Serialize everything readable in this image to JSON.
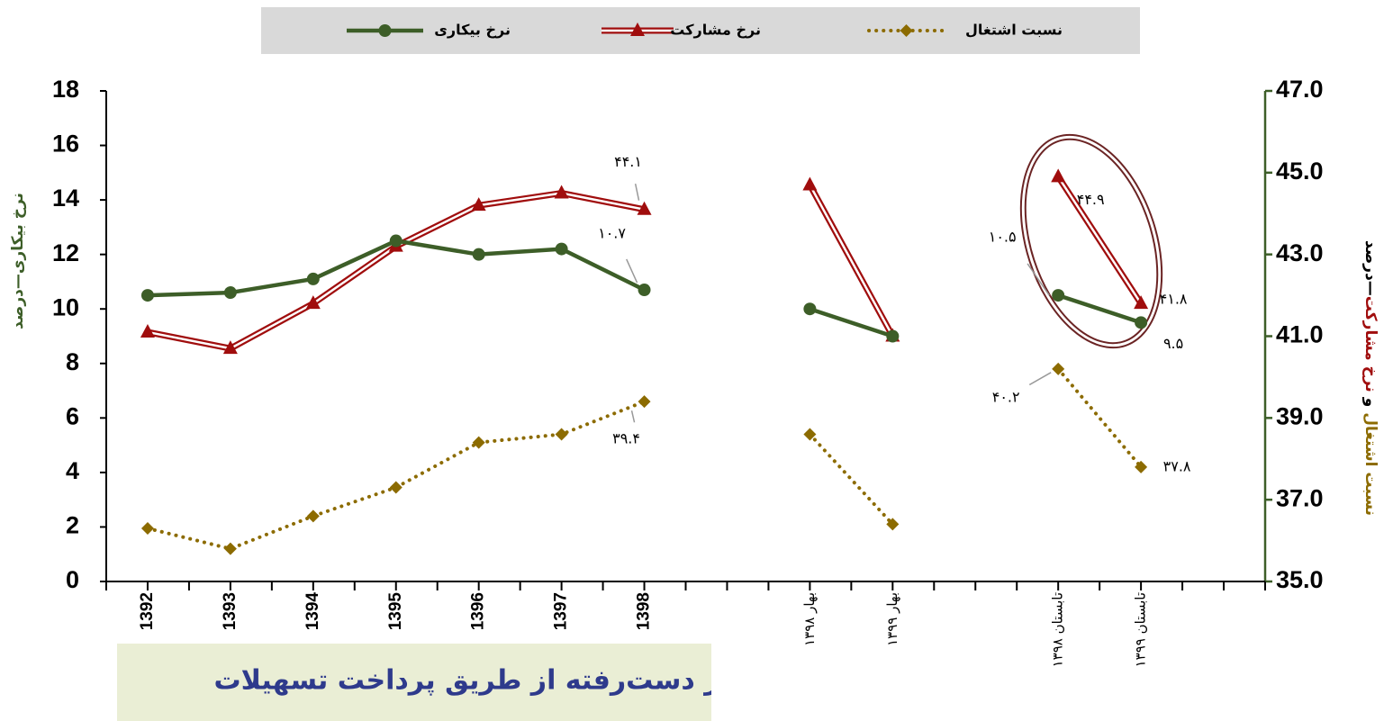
{
  "chart_data": {
    "type": "line",
    "categories": [
      "1392",
      "1393",
      "1394",
      "1395",
      "1396",
      "1397",
      "1398",
      null,
      "بهار ۱۳۹۸",
      "بهار ۱۳۹۹",
      null,
      "تابستان ۱۳۹۸",
      "تابستان ۱۳۹۹",
      null
    ],
    "series": [
      {
        "name": "نرخ بیکاری",
        "color": "#3d5e28",
        "marker": "circle",
        "axis": "y",
        "values": [
          10.5,
          10.6,
          11.1,
          12.5,
          12.0,
          12.2,
          10.7,
          null,
          10.0,
          9.0,
          null,
          10.5,
          9.5,
          null
        ],
        "value_labels": [
          null,
          null,
          null,
          null,
          null,
          null,
          "۱۰.۷",
          null,
          null,
          null,
          null,
          "۱۰.۵",
          "۹.۵",
          null
        ]
      },
      {
        "name": "نرخ مشارکت",
        "color": "#a00d0d",
        "marker": "triangle",
        "axis": "y2",
        "values": [
          41.1,
          40.7,
          41.8,
          43.2,
          44.2,
          44.5,
          44.1,
          null,
          44.7,
          41.0,
          null,
          44.9,
          41.8,
          null
        ],
        "value_labels": [
          null,
          null,
          null,
          null,
          null,
          null,
          "۴۴.۱",
          null,
          null,
          null,
          null,
          "۴۴.۹",
          "۴۱.۸",
          null
        ]
      },
      {
        "name": "نسبت اشتغال",
        "color": "#8c6b00",
        "marker": "diamond",
        "axis": "y2",
        "values": [
          36.3,
          35.8,
          36.6,
          37.3,
          38.4,
          38.6,
          39.4,
          null,
          38.6,
          36.4,
          null,
          40.2,
          37.8,
          null
        ],
        "value_labels": [
          null,
          null,
          null,
          null,
          null,
          null,
          "۳۹.۴",
          null,
          null,
          null,
          null,
          "۴۰.۲",
          "۳۷.۸",
          null
        ]
      }
    ],
    "ylabel": "نرخ بیکاری—درصد",
    "ylabel_color": "#3d5e28",
    "y2label_parts": [
      {
        "text": "نسبت اشتغال",
        "color": "#8c6b00"
      },
      {
        "text": " و ",
        "color": "#000000"
      },
      {
        "text": "نرخ مشارکت",
        "color": "#a00d0d"
      },
      {
        "text": "—درصد",
        "color": "#000000"
      }
    ],
    "ylim": [
      0,
      18
    ],
    "yticks": [
      0,
      2,
      4,
      6,
      8,
      10,
      12,
      14,
      16,
      18
    ],
    "y2lim": [
      35,
      47
    ],
    "y2ticks": [
      {
        "value": 35,
        "label": "35.0"
      },
      {
        "value": 37,
        "label": "37.0"
      },
      {
        "value": 39,
        "label": "39.0"
      },
      {
        "value": 41,
        "label": "41.0"
      },
      {
        "value": 43,
        "label": "43.0"
      },
      {
        "value": 45,
        "label": "45.0"
      },
      {
        "value": 47,
        "label": "47.0"
      }
    ],
    "legend": "top",
    "grid": false,
    "overlay_text": "جبران رفاه از دست‌رفته از طریق پرداخت تسهیلات"
  }
}
